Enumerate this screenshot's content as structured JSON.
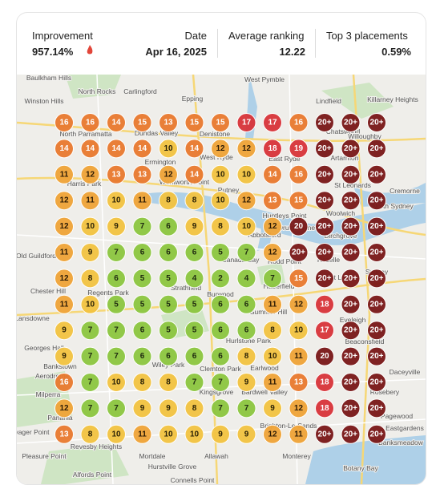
{
  "header": {
    "improvement_label": "Improvement",
    "improvement_value": "957.14%",
    "date_label": "Date",
    "date_value": "Apr 16, 2025",
    "avg_label": "Average ranking",
    "avg_value": "12.22",
    "top3_label": "Top 3 placements",
    "top3_value": "0.59%"
  },
  "grid": [
    [
      16,
      16,
      14,
      15,
      13,
      15,
      15,
      17,
      17,
      16,
      "20+",
      "20+",
      "20+"
    ],
    [
      14,
      14,
      14,
      14,
      10,
      14,
      12,
      12,
      18,
      19,
      "20+",
      "20+",
      "20+"
    ],
    [
      11,
      12,
      13,
      13,
      12,
      14,
      10,
      10,
      14,
      16,
      "20+",
      "20+",
      "20+"
    ],
    [
      12,
      11,
      10,
      11,
      8,
      8,
      10,
      12,
      13,
      15,
      "20+",
      "20+",
      "20+"
    ],
    [
      12,
      10,
      9,
      7,
      6,
      9,
      8,
      10,
      12,
      20,
      "20+",
      "20+",
      "20+"
    ],
    [
      11,
      9,
      7,
      6,
      6,
      6,
      5,
      7,
      12,
      "20+",
      "20+",
      "20+",
      "20+"
    ],
    [
      12,
      8,
      6,
      5,
      5,
      4,
      2,
      4,
      7,
      15,
      "20+",
      "20+",
      "20+"
    ],
    [
      11,
      10,
      5,
      5,
      5,
      5,
      6,
      6,
      11,
      12,
      18,
      "20+",
      "20+"
    ],
    [
      9,
      7,
      7,
      6,
      5,
      5,
      6,
      6,
      8,
      10,
      17,
      "20+",
      "20+"
    ],
    [
      9,
      7,
      7,
      6,
      6,
      6,
      6,
      8,
      10,
      11,
      20,
      "20+",
      "20+"
    ],
    [
      16,
      7,
      10,
      8,
      8,
      7,
      7,
      9,
      11,
      13,
      18,
      "20+",
      "20+"
    ],
    [
      12,
      7,
      7,
      9,
      9,
      8,
      7,
      7,
      9,
      12,
      18,
      "20+",
      "20+"
    ],
    [
      13,
      8,
      10,
      11,
      10,
      10,
      9,
      9,
      12,
      11,
      "20+",
      "20+",
      "20+"
    ]
  ],
  "map_labels": [
    "Baulkham Hills",
    "North Rocks",
    "Carlingford",
    "West Pymble",
    "Killarney Heights",
    "Winston Hills",
    "Epping",
    "Lindfield",
    "North Parramatta",
    "Dundas Valley",
    "Denistone",
    "Chatswood",
    "Willoughby",
    "Ermington",
    "West Ryde",
    "East Ryde",
    "Artarmon",
    "Harris Park",
    "Wentworth Point",
    "Putney",
    "St Leonards",
    "Cremorne",
    "Huntleys Point",
    "Woolwich",
    "North Sydney",
    "Birchgrove",
    "Drummoyne",
    "Abbotsford",
    "Canada Bay",
    "Rodd Point",
    "Rozelle",
    "Sydney",
    "Haberfield",
    "Strathfield",
    "Burwood",
    "Chester Hill",
    "Regents Park",
    "Forest Lodge",
    "Summer Hill",
    "Eveleigh",
    "Beaconsfield",
    "Georges Hall",
    "Bankstown",
    "Aerodrome",
    "Wiley Park",
    "Clemton Park",
    "Earlwood",
    "Hurlstone Park",
    "Kingsgrove",
    "Bardwell Valley",
    "Rosebery",
    "Daceyville",
    "Pagewood",
    "Eastgardens",
    "Banksmeadow",
    "Milperra",
    "Panania",
    "Voyager Point",
    "Revesby Heights",
    "Mortdale",
    "Allawah",
    "Monterey",
    "Brighton-Le-Sands",
    "Pleasure Point",
    "Hurstville Grove",
    "Alfords Point",
    "Connells Point",
    "Botany Bay",
    "Lansdowne",
    "Old Guildford"
  ]
}
